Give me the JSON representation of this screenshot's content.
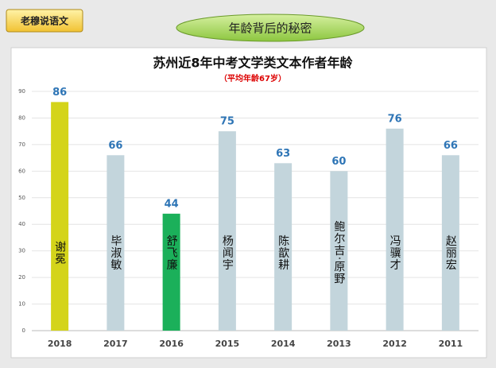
{
  "header": {
    "label": "老穆说语文",
    "banner": "年龄背后的秘密"
  },
  "chart_data": {
    "type": "bar",
    "title": "苏州近8年中考文学类文本作者年龄",
    "subtitle": "（平均年龄67岁）",
    "categories": [
      "2018",
      "2017",
      "2016",
      "2015",
      "2014",
      "2013",
      "2012",
      "2011"
    ],
    "values": [
      86,
      66,
      44,
      75,
      63,
      60,
      76,
      66
    ],
    "bar_labels": [
      "谢冕",
      "毕淑敏",
      "舒飞廉",
      "杨闻宇",
      "陈歆耕",
      "鲍尔吉·原野",
      "冯骥才",
      "赵丽宏"
    ],
    "colors": [
      "#d4d41a",
      "#c3d5dc",
      "#1bb05a",
      "#c3d5dc",
      "#c3d5dc",
      "#c3d5dc",
      "#c3d5dc",
      "#c3d5dc"
    ],
    "ylim": [
      0,
      90
    ],
    "yticks": [
      0,
      10,
      20,
      30,
      40,
      50,
      60,
      70,
      80,
      90
    ],
    "grid": true
  }
}
